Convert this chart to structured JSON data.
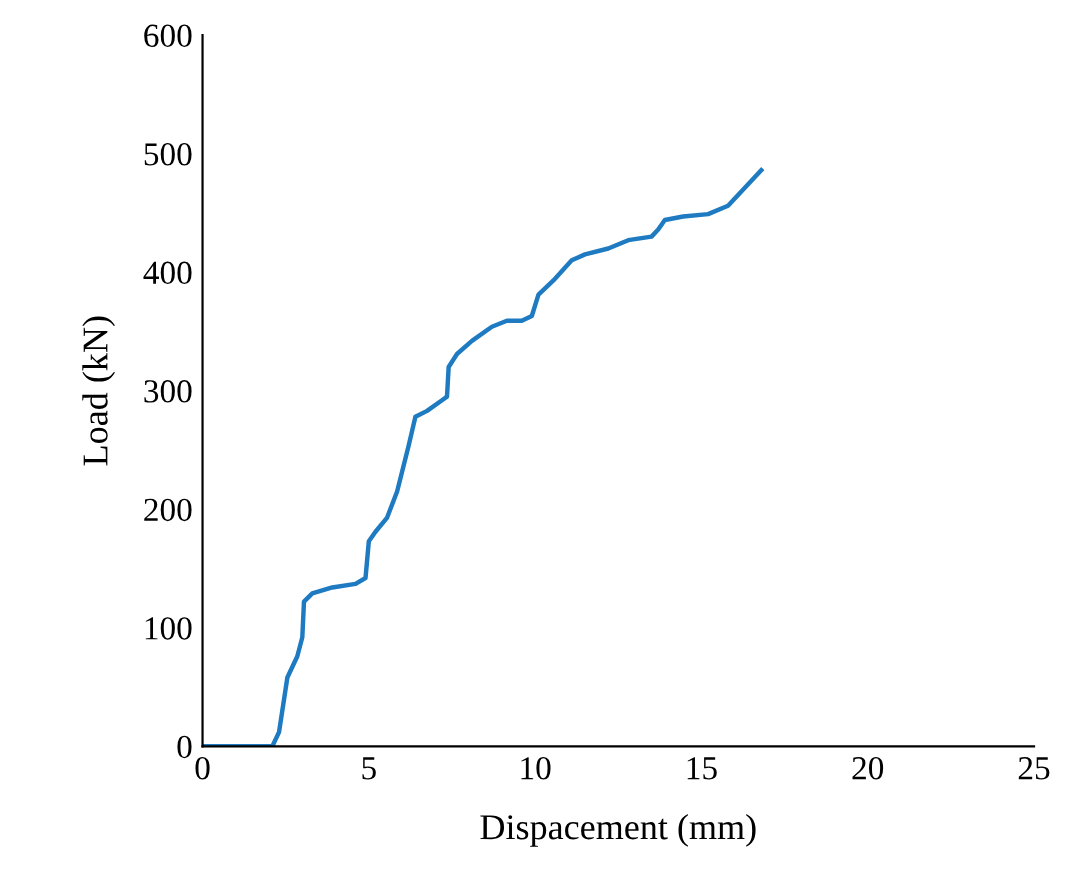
{
  "chart_data": {
    "type": "line",
    "xlabel": "Dispacement (mm)",
    "ylabel": "Load (kN)",
    "xlim": [
      0,
      25
    ],
    "xticks": [
      0,
      5,
      10,
      15,
      20,
      25
    ],
    "ylim": [
      0,
      600
    ],
    "yticks": [
      0,
      100,
      200,
      300,
      400,
      500,
      600
    ],
    "grid": false,
    "legend": false,
    "series": [
      {
        "color": "#1f7bc1",
        "x": [
          0,
          2.1,
          2.3,
          2.55,
          2.85,
          3.0,
          3.05,
          3.3,
          3.9,
          4.6,
          4.9,
          5.0,
          5.2,
          5.55,
          5.85,
          6.2,
          6.4,
          6.75,
          7.2,
          7.35,
          7.4,
          7.65,
          8.1,
          8.7,
          9.15,
          9.6,
          9.9,
          10.1,
          10.55,
          11.1,
          11.5,
          12.2,
          12.8,
          13.5,
          13.7,
          13.9,
          14.45,
          15.2,
          15.8,
          16.8
        ],
        "values": [
          0,
          0,
          12,
          58,
          76,
          92,
          122,
          129,
          134,
          137,
          142,
          173,
          181,
          193,
          215,
          254,
          278,
          283,
          292,
          295,
          320,
          331,
          342,
          354,
          359,
          359,
          363,
          381,
          393,
          410,
          415,
          420,
          427,
          430,
          436,
          444,
          447,
          449,
          456,
          486
        ]
      }
    ]
  }
}
